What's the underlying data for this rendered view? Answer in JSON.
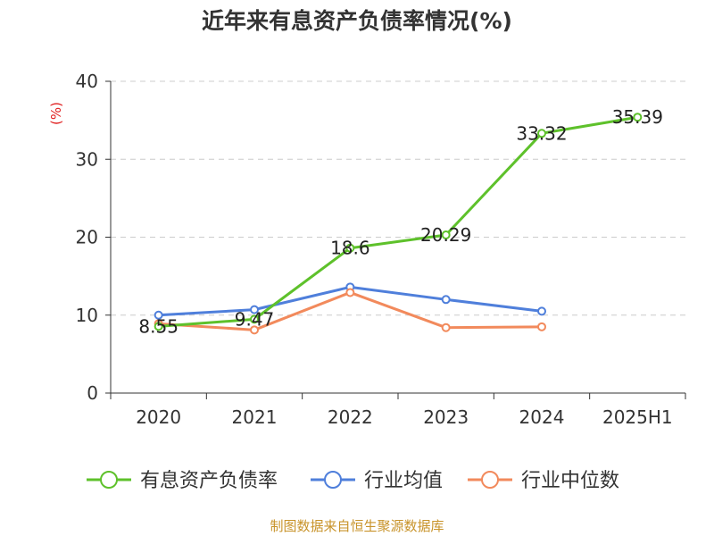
{
  "chart_data": {
    "type": "line",
    "title": "近年来有息资产负债率情况(%)",
    "ylabel": "(%)",
    "xlabel": "",
    "categories": [
      "2020",
      "2021",
      "2022",
      "2023",
      "2024",
      "2025H1"
    ],
    "ylim": [
      0,
      40
    ],
    "yticks": [
      0,
      10,
      20,
      30,
      40
    ],
    "grid": "horizontal-dashed",
    "legend_position": "bottom",
    "series": [
      {
        "name": "有息资产负债率",
        "color": "#5ec12b",
        "values": [
          8.55,
          9.47,
          18.6,
          20.29,
          33.32,
          35.39
        ],
        "labels": [
          "8.55",
          "9.47",
          "18.6",
          "20.29",
          "33.32",
          "35.39"
        ]
      },
      {
        "name": "行业均值",
        "color": "#4f7fdb",
        "values": [
          10.0,
          10.7,
          13.6,
          12.0,
          10.5,
          null
        ]
      },
      {
        "name": "行业中位数",
        "color": "#f28a5c",
        "values": [
          8.9,
          8.1,
          12.9,
          8.4,
          8.5,
          null
        ]
      }
    ],
    "source": "制图数据来自恒生聚源数据库"
  }
}
